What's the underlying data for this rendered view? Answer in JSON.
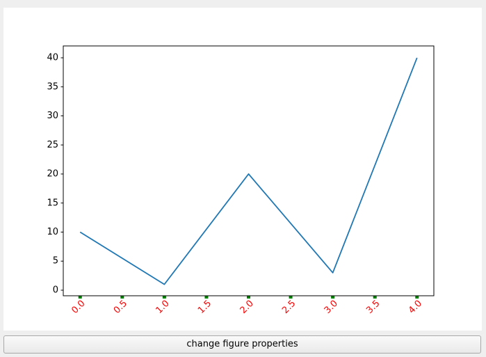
{
  "chart_data": {
    "type": "line",
    "x": [
      0,
      1,
      2,
      3,
      4
    ],
    "values": [
      10,
      1,
      20,
      3,
      40
    ],
    "color": "#1f77b4",
    "xlim": [
      -0.2,
      4.2
    ],
    "ylim": [
      -0.96,
      42.04
    ],
    "xticks": [
      {
        "value": 0,
        "label": "0.0"
      },
      0.5,
      {
        "value": 1,
        "label": "1.0"
      },
      1.5,
      {
        "value": 2,
        "label": "2.0"
      },
      2.5,
      {
        "value": 3,
        "label": "3.0"
      },
      3.5,
      {
        "value": 4,
        "label": "4.0"
      }
    ],
    "yticks": [
      0,
      5,
      10,
      15,
      20,
      25,
      30,
      35,
      40
    ],
    "xtick_label_color": "#ff0000",
    "xtick_mark_color": "#008000",
    "xtick_rotation": 45
  },
  "button": {
    "label": "change figure properties"
  }
}
